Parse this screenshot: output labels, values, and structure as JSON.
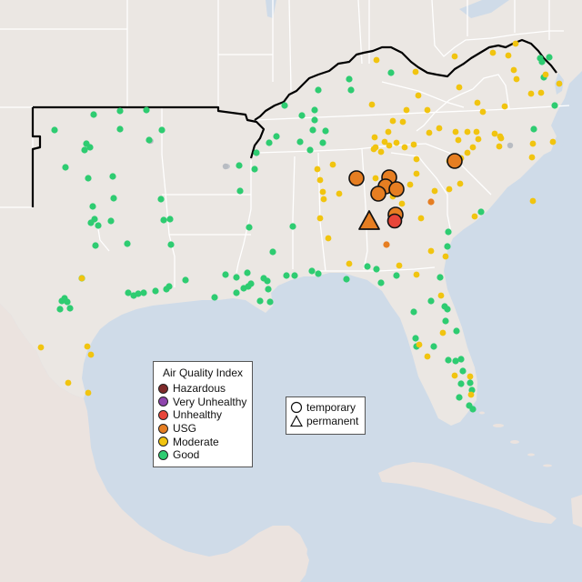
{
  "legend": {
    "title": "Air Quality Index",
    "categories": [
      {
        "label": "Hazardous",
        "color": "#7e2a2a"
      },
      {
        "label": "Very Unhealthy",
        "color": "#8e44ad"
      },
      {
        "label": "Unhealthy",
        "color": "#e8463a"
      },
      {
        "label": "USG",
        "color": "#e67e22"
      },
      {
        "label": "Moderate",
        "color": "#f1c40f"
      },
      {
        "label": "Good",
        "color": "#2ecc71"
      }
    ]
  },
  "shape_legend": {
    "temporary": "temporary",
    "permanent": "permanent"
  },
  "colors": {
    "water": "#cfdbe8",
    "land": "#ebe7e3",
    "border": "#ffffff",
    "highlight_border": "#000000",
    "no_data": "#b8bcc2"
  },
  "monitors": {
    "good": [
      [
        60,
        143
      ],
      [
        103,
        126
      ],
      [
        132,
        122
      ],
      [
        161,
        121
      ],
      [
        132,
        142
      ],
      [
        95,
        158
      ],
      [
        93,
        165
      ],
      [
        99,
        162
      ],
      [
        72,
        184
      ],
      [
        97,
        196
      ],
      [
        124,
        194
      ],
      [
        178,
        143
      ],
      [
        164,
        154
      ],
      [
        102,
        227
      ],
      [
        125,
        218
      ],
      [
        104,
        241
      ],
      [
        100,
        245
      ],
      [
        108,
        248
      ],
      [
        122,
        243
      ],
      [
        177,
        219
      ],
      [
        180,
        242
      ],
      [
        187,
        241
      ],
      [
        105,
        270
      ],
      [
        140,
        268
      ],
      [
        188,
        269
      ],
      [
        90,
        306
      ],
      [
        71,
        328
      ],
      [
        68,
        331
      ],
      [
        74,
        332
      ],
      [
        66,
        340
      ],
      [
        77,
        339
      ],
      [
        141,
        322
      ],
      [
        147,
        325
      ],
      [
        152,
        323
      ],
      [
        158,
        322
      ],
      [
        171,
        320
      ],
      [
        183,
        318
      ],
      [
        204,
        308
      ],
      [
        186,
        315
      ],
      [
        248,
        302
      ],
      [
        260,
        305
      ],
      [
        268,
        317
      ],
      [
        273,
        315
      ],
      [
        276,
        312
      ],
      [
        272,
        300
      ],
      [
        290,
        306
      ],
      [
        294,
        309
      ],
      [
        295,
        318
      ],
      [
        297,
        332
      ],
      [
        286,
        331
      ],
      [
        260,
        322
      ],
      [
        236,
        327
      ],
      [
        315,
        303
      ],
      [
        324,
        303
      ],
      [
        343,
        298
      ],
      [
        350,
        301
      ],
      [
        381,
        307
      ],
      [
        404,
        293
      ],
      [
        414,
        296
      ],
      [
        350,
        99
      ],
      [
        384,
        87
      ],
      [
        386,
        99
      ],
      [
        313,
        116
      ],
      [
        332,
        127
      ],
      [
        346,
        121
      ],
      [
        346,
        132
      ],
      [
        344,
        143
      ],
      [
        358,
        144
      ],
      [
        355,
        157
      ],
      [
        330,
        156
      ],
      [
        304,
        150
      ],
      [
        296,
        157
      ],
      [
        282,
        168
      ],
      [
        280,
        186
      ],
      [
        263,
        182
      ],
      [
        264,
        210
      ],
      [
        274,
        250
      ],
      [
        300,
        277
      ],
      [
        322,
        249
      ],
      [
        341,
        165
      ],
      [
        430,
        80
      ],
      [
        436,
        303
      ],
      [
        419,
        311
      ],
      [
        455,
        343
      ],
      [
        457,
        372
      ],
      [
        458,
        381
      ],
      [
        474,
        331
      ],
      [
        484,
        305
      ],
      [
        489,
        337
      ],
      [
        493,
        255
      ],
      [
        492,
        271
      ],
      [
        477,
        381
      ],
      [
        493,
        396
      ],
      [
        501,
        397
      ],
      [
        492,
        340
      ],
      [
        490,
        353
      ],
      [
        502,
        364
      ],
      [
        507,
        395
      ],
      [
        509,
        408
      ],
      [
        517,
        421
      ],
      [
        519,
        429
      ],
      [
        520,
        450
      ],
      [
        516,
        446
      ],
      [
        505,
        437
      ],
      [
        507,
        422
      ],
      [
        610,
        116
      ],
      [
        596,
        68
      ],
      [
        587,
        142
      ],
      [
        598,
        85
      ],
      [
        529,
        233
      ],
      [
        594,
        64
      ],
      [
        604,
        63
      ]
    ],
    "moderate": [
      [
        90,
        306
      ],
      [
        45,
        382
      ],
      [
        75,
        421
      ],
      [
        97,
        432
      ],
      [
        96,
        381
      ],
      [
        100,
        390
      ],
      [
        355,
        211
      ],
      [
        356,
        219
      ],
      [
        373,
        213
      ],
      [
        352,
        240
      ],
      [
        349,
        186
      ],
      [
        366,
        181
      ],
      [
        352,
        198
      ],
      [
        361,
        262
      ],
      [
        384,
        290
      ],
      [
        409,
        115
      ],
      [
        414,
        66
      ],
      [
        457,
        79
      ],
      [
        500,
        62
      ],
      [
        542,
        58
      ],
      [
        559,
        61
      ],
      [
        567,
        48
      ],
      [
        565,
        77
      ],
      [
        568,
        87
      ],
      [
        505,
        96
      ],
      [
        460,
        105
      ],
      [
        470,
        121
      ],
      [
        447,
        121
      ],
      [
        443,
        134
      ],
      [
        432,
        133
      ],
      [
        427,
        145
      ],
      [
        423,
        156
      ],
      [
        428,
        160
      ],
      [
        412,
        151
      ],
      [
        413,
        162
      ],
      [
        411,
        164
      ],
      [
        413,
        196
      ],
      [
        419,
        167
      ],
      [
        436,
        157
      ],
      [
        445,
        162
      ],
      [
        455,
        159
      ],
      [
        472,
        146
      ],
      [
        483,
        141
      ],
      [
        501,
        145
      ],
      [
        514,
        145
      ],
      [
        520,
        162
      ],
      [
        524,
        145
      ],
      [
        526,
        153
      ],
      [
        504,
        154
      ],
      [
        544,
        147
      ],
      [
        551,
        152
      ],
      [
        555,
        117
      ],
      [
        584,
        103
      ],
      [
        595,
        102
      ],
      [
        615,
        92
      ],
      [
        586,
        158
      ],
      [
        608,
        156
      ],
      [
        585,
        173
      ],
      [
        531,
        123
      ],
      [
        525,
        113
      ],
      [
        549,
        161
      ],
      [
        586,
        221
      ],
      [
        522,
        238
      ],
      [
        506,
        202
      ],
      [
        494,
        208
      ],
      [
        478,
        210
      ],
      [
        442,
        224
      ],
      [
        439,
        292
      ],
      [
        463,
        240
      ],
      [
        474,
        276
      ],
      [
        458,
        302
      ],
      [
        490,
        282
      ],
      [
        485,
        325
      ],
      [
        487,
        366
      ],
      [
        461,
        379
      ],
      [
        470,
        392
      ],
      [
        500,
        413
      ],
      [
        517,
        414
      ],
      [
        518,
        434
      ],
      [
        600,
        82
      ],
      [
        550,
        150
      ],
      [
        507,
        174
      ],
      [
        514,
        168
      ],
      [
        494,
        177
      ],
      [
        458,
        191
      ],
      [
        458,
        175
      ],
      [
        451,
        203
      ],
      [
        432,
        216
      ]
    ],
    "usg_small": [
      [
        474,
        222
      ],
      [
        425,
        269
      ],
      [
        437,
        240
      ]
    ],
    "usg_large": [
      [
        392,
        196
      ],
      [
        428,
        195
      ],
      [
        424,
        205
      ],
      [
        436,
        208
      ],
      [
        416,
        213
      ],
      [
        500,
        177
      ],
      [
        435,
        236
      ]
    ],
    "unhealthy": [
      [
        434,
        243
      ]
    ],
    "permanent_usg": [
      [
        406,
        243
      ]
    ],
    "no_data": [
      [
        165,
        155
      ],
      [
        248,
        183
      ],
      [
        561,
        160
      ]
    ]
  }
}
